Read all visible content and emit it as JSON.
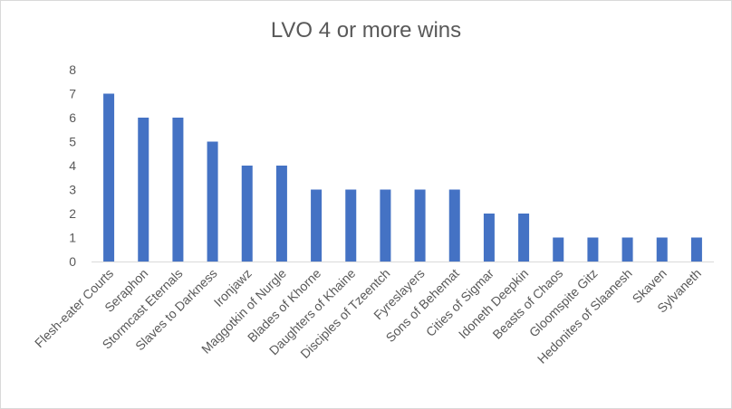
{
  "chart_data": {
    "type": "bar",
    "title": "LVO 4 or more wins",
    "xlabel": "",
    "ylabel": "",
    "ylim": [
      0,
      8
    ],
    "yticks": [
      0,
      1,
      2,
      3,
      4,
      5,
      6,
      7,
      8
    ],
    "grid": false,
    "legend": "none",
    "bar_color": "#4472c4",
    "categories": [
      "Flesh-eater Courts",
      "Seraphon",
      "Stormcast Eternals",
      "Slaves to Darkness",
      "Ironjawz",
      "Maggotkin of Nurgle",
      "Blades of Khorne",
      "Daughters of Khaine",
      "Disciples of Tzeentch",
      "Fyreslayers",
      "Sons of Behemat",
      "Cities of Sigmar",
      "Idoneth Deepkin",
      "Beasts of Chaos",
      "Gloomspite Gitz",
      "Hedonites of Slaanesh",
      "Skaven",
      "Sylvaneth"
    ],
    "values": [
      7,
      6,
      6,
      5,
      4,
      4,
      3,
      3,
      3,
      3,
      3,
      2,
      2,
      1,
      1,
      1,
      1,
      1
    ]
  }
}
